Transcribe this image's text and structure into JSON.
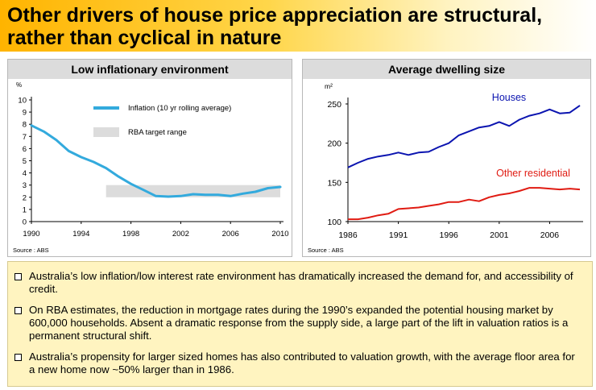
{
  "header": {
    "title_line1": "Other drivers of house price appreciation are structural,",
    "title_line2": "rather than cyclical in nature"
  },
  "colors": {
    "inflation_line": "#33aadd",
    "target_band": "#dcdcdc",
    "houses_line": "#0b14b0",
    "other_line": "#e01b12"
  },
  "chart_data": [
    {
      "type": "line",
      "title": "Low inflationary environment",
      "ylabel": "%",
      "xlabel": "",
      "ylim": [
        0,
        10
      ],
      "xlim": [
        1990,
        2010
      ],
      "y_ticks": [
        "0",
        "1",
        "2",
        "3",
        "4",
        "5",
        "6",
        "7",
        "8",
        "9",
        "10"
      ],
      "x_ticks": [
        "1990",
        "1994",
        "1998",
        "2002",
        "2006",
        "2010"
      ],
      "series": [
        {
          "name": "Inflation (10 yr rolling average)",
          "x": [
            1990,
            1991,
            1992,
            1993,
            1994,
            1995,
            1996,
            1997,
            1998,
            1999,
            2000,
            2001,
            2002,
            2003,
            2004,
            2005,
            2006,
            2007,
            2008,
            2009,
            2010
          ],
          "values": [
            7.9,
            7.4,
            6.7,
            5.8,
            5.3,
            4.9,
            4.4,
            3.7,
            3.1,
            2.6,
            2.1,
            2.05,
            2.1,
            2.25,
            2.2,
            2.2,
            2.1,
            2.3,
            2.45,
            2.75,
            2.85
          ]
        }
      ],
      "band": {
        "name": "RBA target range",
        "x_start": 1996,
        "x_end": 2010,
        "y_low": 2,
        "y_high": 3
      },
      "source": "Source : ABS"
    },
    {
      "type": "line",
      "title": "Average dwelling size",
      "ylabel": "m²",
      "xlabel": "",
      "ylim": [
        100,
        250
      ],
      "xlim": [
        1986,
        2009
      ],
      "y_ticks": [
        "100",
        "150",
        "200",
        "250"
      ],
      "x_ticks": [
        "1986",
        "1991",
        "1996",
        "2001",
        "2006"
      ],
      "series": [
        {
          "name": "Houses",
          "x": [
            1986,
            1987,
            1988,
            1989,
            1990,
            1991,
            1992,
            1993,
            1994,
            1995,
            1996,
            1997,
            1998,
            1999,
            2000,
            2001,
            2002,
            2003,
            2004,
            2005,
            2006,
            2007,
            2008,
            2009
          ],
          "values": [
            169,
            175,
            180,
            183,
            185,
            188,
            185,
            188,
            189,
            195,
            200,
            210,
            215,
            220,
            222,
            227,
            222,
            230,
            235,
            238,
            243,
            238,
            239,
            248
          ]
        },
        {
          "name": "Other residential",
          "x": [
            1986,
            1987,
            1988,
            1989,
            1990,
            1991,
            1992,
            1993,
            1994,
            1995,
            1996,
            1997,
            1998,
            1999,
            2000,
            2001,
            2002,
            2003,
            2004,
            2005,
            2006,
            2007,
            2008,
            2009
          ],
          "values": [
            103,
            103,
            105,
            108,
            110,
            116,
            117,
            118,
            120,
            122,
            125,
            125,
            128,
            126,
            131,
            134,
            136,
            139,
            143,
            143,
            142,
            141,
            142,
            141
          ]
        }
      ],
      "source": "Source : ABS"
    }
  ],
  "notes": [
    "Australia’s low inflation/low interest rate environment has dramatically increased the demand for, and accessibility of credit.",
    "On RBA estimates, the reduction in mortgage rates during the 1990’s expanded the potential housing market by 600,000 households. Absent a dramatic response from the supply side, a large part of the lift in valuation ratios is a permanent structural shift.",
    "Australia’s propensity for larger sized homes has also contributed to valuation growth, with the average floor area for a new home now ~50% larger than in 1986."
  ]
}
